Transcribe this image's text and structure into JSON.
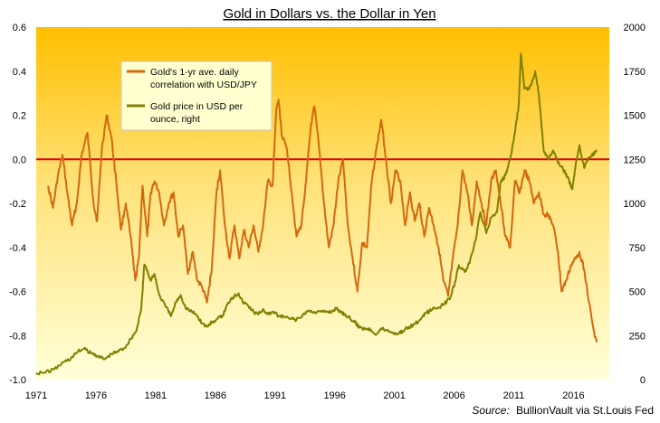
{
  "chart_data": {
    "type": "line",
    "title": "Gold in Dollars vs. the Dollar in Yen",
    "source_label": "Source:",
    "source_text": "BullionVault via St.Louis Fed",
    "x_ticks": [
      1971,
      1976,
      1981,
      1986,
      1991,
      1996,
      2001,
      2006,
      2011,
      2016
    ],
    "y_left": {
      "min": -1.0,
      "max": 0.6,
      "ticks": [
        "-1.0",
        "-0.8",
        "-0.6",
        "-0.4",
        "-0.2",
        "0.0",
        "0.2",
        "0.4",
        "0.6"
      ]
    },
    "y_right": {
      "min": 0,
      "max": 2000,
      "ticks": [
        "0",
        "250",
        "500",
        "750",
        "1000",
        "1250",
        "1500",
        "1750",
        "2000"
      ]
    },
    "reference_line": {
      "value": 0.0,
      "color": "#e00000"
    },
    "legend": [
      {
        "name": "Gold's 1-yr ave. daily correlation with USD/JPY",
        "lines": [
          "Gold's 1-yr ave. daily",
          "correlation with USD/JPY"
        ],
        "color": "#d2690e"
      },
      {
        "name": "Gold price in USD per ounce, right",
        "lines": [
          "Gold price in USD per",
          "ounce, right"
        ],
        "color": "#808000"
      }
    ],
    "series": [
      {
        "name": "Gold's 1-yr ave. daily correlation with USD/JPY",
        "axis": "left",
        "color": "#d2690e",
        "points": [
          [
            1972.0,
            -0.12
          ],
          [
            1972.4,
            -0.22
          ],
          [
            1972.8,
            -0.08
          ],
          [
            1973.2,
            0.02
          ],
          [
            1973.6,
            -0.15
          ],
          [
            1974.0,
            -0.3
          ],
          [
            1974.4,
            -0.2
          ],
          [
            1974.8,
            0.02
          ],
          [
            1975.3,
            0.12
          ],
          [
            1975.8,
            -0.2
          ],
          [
            1976.1,
            -0.28
          ],
          [
            1976.5,
            0.05
          ],
          [
            1976.9,
            0.2
          ],
          [
            1977.3,
            0.1
          ],
          [
            1977.7,
            -0.1
          ],
          [
            1978.1,
            -0.32
          ],
          [
            1978.5,
            -0.2
          ],
          [
            1978.9,
            -0.35
          ],
          [
            1979.3,
            -0.55
          ],
          [
            1979.6,
            -0.45
          ],
          [
            1979.9,
            -0.12
          ],
          [
            1980.3,
            -0.35
          ],
          [
            1980.6,
            -0.15
          ],
          [
            1980.9,
            -0.1
          ],
          [
            1981.3,
            -0.15
          ],
          [
            1981.7,
            -0.3
          ],
          [
            1982.1,
            -0.2
          ],
          [
            1982.5,
            -0.15
          ],
          [
            1982.9,
            -0.35
          ],
          [
            1983.3,
            -0.3
          ],
          [
            1983.7,
            -0.52
          ],
          [
            1984.1,
            -0.42
          ],
          [
            1984.5,
            -0.55
          ],
          [
            1984.9,
            -0.58
          ],
          [
            1985.3,
            -0.65
          ],
          [
            1985.7,
            -0.5
          ],
          [
            1986.1,
            -0.15
          ],
          [
            1986.4,
            -0.05
          ],
          [
            1986.8,
            -0.3
          ],
          [
            1987.2,
            -0.45
          ],
          [
            1987.6,
            -0.3
          ],
          [
            1988.0,
            -0.45
          ],
          [
            1988.4,
            -0.32
          ],
          [
            1988.8,
            -0.4
          ],
          [
            1989.2,
            -0.3
          ],
          [
            1989.6,
            -0.42
          ],
          [
            1990.0,
            -0.3
          ],
          [
            1990.4,
            -0.1
          ],
          [
            1990.8,
            -0.12
          ],
          [
            1991.1,
            0.22
          ],
          [
            1991.3,
            0.27
          ],
          [
            1991.6,
            0.1
          ],
          [
            1992.0,
            0.05
          ],
          [
            1992.4,
            -0.15
          ],
          [
            1992.8,
            -0.35
          ],
          [
            1993.2,
            -0.3
          ],
          [
            1993.6,
            -0.1
          ],
          [
            1994.0,
            0.15
          ],
          [
            1994.3,
            0.24
          ],
          [
            1994.7,
            0.05
          ],
          [
            1995.1,
            -0.2
          ],
          [
            1995.5,
            -0.4
          ],
          [
            1995.9,
            -0.3
          ],
          [
            1996.3,
            -0.1
          ],
          [
            1996.7,
            0.0
          ],
          [
            1997.1,
            -0.3
          ],
          [
            1997.5,
            -0.45
          ],
          [
            1997.9,
            -0.6
          ],
          [
            1998.3,
            -0.38
          ],
          [
            1998.7,
            -0.4
          ],
          [
            1999.1,
            -0.1
          ],
          [
            1999.5,
            0.05
          ],
          [
            1999.9,
            0.18
          ],
          [
            2000.3,
            0.0
          ],
          [
            2000.7,
            -0.2
          ],
          [
            2001.1,
            -0.05
          ],
          [
            2001.5,
            -0.1
          ],
          [
            2001.9,
            -0.3
          ],
          [
            2002.3,
            -0.15
          ],
          [
            2002.7,
            -0.28
          ],
          [
            2003.1,
            -0.2
          ],
          [
            2003.5,
            -0.35
          ],
          [
            2003.9,
            -0.22
          ],
          [
            2004.3,
            -0.3
          ],
          [
            2004.7,
            -0.4
          ],
          [
            2005.1,
            -0.55
          ],
          [
            2005.5,
            -0.62
          ],
          [
            2005.9,
            -0.45
          ],
          [
            2006.3,
            -0.3
          ],
          [
            2006.7,
            -0.05
          ],
          [
            2007.1,
            -0.15
          ],
          [
            2007.5,
            -0.3
          ],
          [
            2007.9,
            -0.1
          ],
          [
            2008.3,
            -0.2
          ],
          [
            2008.7,
            -0.3
          ],
          [
            2009.1,
            -0.1
          ],
          [
            2009.5,
            -0.05
          ],
          [
            2009.9,
            -0.2
          ],
          [
            2010.3,
            -0.35
          ],
          [
            2010.7,
            -0.4
          ],
          [
            2011.1,
            -0.1
          ],
          [
            2011.5,
            -0.15
          ],
          [
            2011.9,
            -0.05
          ],
          [
            2012.3,
            -0.1
          ],
          [
            2012.7,
            -0.2
          ],
          [
            2013.1,
            -0.15
          ],
          [
            2013.5,
            -0.25
          ],
          [
            2013.9,
            -0.25
          ],
          [
            2014.3,
            -0.3
          ],
          [
            2014.7,
            -0.42
          ],
          [
            2015.0,
            -0.6
          ],
          [
            2015.4,
            -0.55
          ],
          [
            2015.8,
            -0.48
          ],
          [
            2016.2,
            -0.45
          ],
          [
            2016.5,
            -0.42
          ],
          [
            2016.9,
            -0.5
          ],
          [
            2017.3,
            -0.65
          ],
          [
            2017.7,
            -0.78
          ],
          [
            2017.95,
            -0.83
          ]
        ]
      },
      {
        "name": "Gold price in USD per ounce, right",
        "axis": "right",
        "color": "#808000",
        "points": [
          [
            1971.0,
            38
          ],
          [
            1971.8,
            42
          ],
          [
            1972.5,
            58
          ],
          [
            1973.3,
            100
          ],
          [
            1973.9,
            120
          ],
          [
            1974.5,
            160
          ],
          [
            1975.0,
            175
          ],
          [
            1975.6,
            150
          ],
          [
            1976.2,
            135
          ],
          [
            1976.7,
            115
          ],
          [
            1977.3,
            145
          ],
          [
            1977.8,
            160
          ],
          [
            1978.4,
            180
          ],
          [
            1978.9,
            230
          ],
          [
            1979.4,
            280
          ],
          [
            1979.8,
            400
          ],
          [
            1980.05,
            650
          ],
          [
            1980.2,
            640
          ],
          [
            1980.6,
            560
          ],
          [
            1980.9,
            600
          ],
          [
            1981.3,
            480
          ],
          [
            1981.8,
            420
          ],
          [
            1982.3,
            360
          ],
          [
            1982.7,
            440
          ],
          [
            1983.1,
            480
          ],
          [
            1983.5,
            410
          ],
          [
            1983.9,
            390
          ],
          [
            1984.4,
            370
          ],
          [
            1984.9,
            320
          ],
          [
            1985.3,
            300
          ],
          [
            1985.7,
            325
          ],
          [
            1986.2,
            345
          ],
          [
            1986.6,
            360
          ],
          [
            1986.9,
            410
          ],
          [
            1987.3,
            460
          ],
          [
            1987.7,
            480
          ],
          [
            1987.95,
            490
          ],
          [
            1988.3,
            440
          ],
          [
            1988.7,
            425
          ],
          [
            1989.2,
            385
          ],
          [
            1989.6,
            370
          ],
          [
            1990.0,
            400
          ],
          [
            1990.4,
            370
          ],
          [
            1990.8,
            385
          ],
          [
            1991.3,
            360
          ],
          [
            1991.8,
            355
          ],
          [
            1992.3,
            345
          ],
          [
            1992.8,
            340
          ],
          [
            1993.3,
            360
          ],
          [
            1993.7,
            390
          ],
          [
            1994.3,
            385
          ],
          [
            1994.8,
            385
          ],
          [
            1995.3,
            385
          ],
          [
            1995.8,
            388
          ],
          [
            1996.1,
            405
          ],
          [
            1996.5,
            385
          ],
          [
            1996.9,
            370
          ],
          [
            1997.3,
            345
          ],
          [
            1997.7,
            325
          ],
          [
            1998.1,
            295
          ],
          [
            1998.6,
            290
          ],
          [
            1999.0,
            285
          ],
          [
            1999.5,
            258
          ],
          [
            1999.9,
            290
          ],
          [
            2000.4,
            280
          ],
          [
            2000.9,
            265
          ],
          [
            2001.3,
            262
          ],
          [
            2001.7,
            275
          ],
          [
            2002.2,
            300
          ],
          [
            2002.7,
            315
          ],
          [
            2003.2,
            340
          ],
          [
            2003.7,
            380
          ],
          [
            2004.2,
            400
          ],
          [
            2004.7,
            410
          ],
          [
            2005.2,
            430
          ],
          [
            2005.7,
            470
          ],
          [
            2006.1,
            560
          ],
          [
            2006.4,
            650
          ],
          [
            2006.9,
            610
          ],
          [
            2007.3,
            660
          ],
          [
            2007.8,
            790
          ],
          [
            2008.2,
            950
          ],
          [
            2008.7,
            830
          ],
          [
            2009.1,
            920
          ],
          [
            2009.6,
            950
          ],
          [
            2009.9,
            1120
          ],
          [
            2010.3,
            1160
          ],
          [
            2010.7,
            1250
          ],
          [
            2011.1,
            1400
          ],
          [
            2011.4,
            1550
          ],
          [
            2011.6,
            1850
          ],
          [
            2011.9,
            1650
          ],
          [
            2012.3,
            1650
          ],
          [
            2012.8,
            1750
          ],
          [
            2013.1,
            1620
          ],
          [
            2013.5,
            1300
          ],
          [
            2013.9,
            1250
          ],
          [
            2014.3,
            1300
          ],
          [
            2014.7,
            1230
          ],
          [
            2015.1,
            1200
          ],
          [
            2015.5,
            1150
          ],
          [
            2015.9,
            1080
          ],
          [
            2016.2,
            1230
          ],
          [
            2016.5,
            1330
          ],
          [
            2016.9,
            1200
          ],
          [
            2017.3,
            1260
          ],
          [
            2017.7,
            1280
          ],
          [
            2017.95,
            1300
          ]
        ]
      }
    ]
  }
}
